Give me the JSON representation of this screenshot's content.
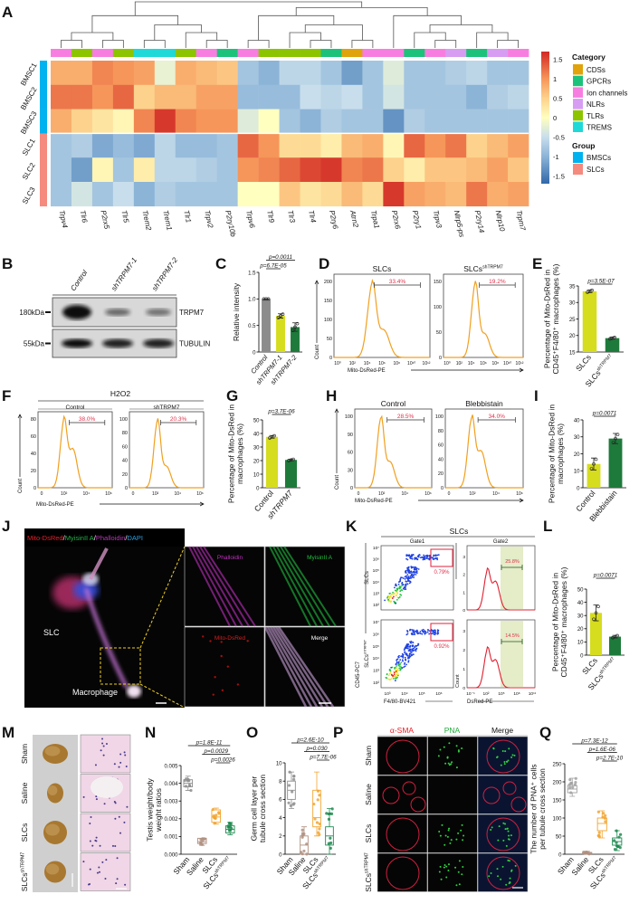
{
  "panel_labels": {
    "A": "A",
    "B": "B",
    "C": "C",
    "D": "D",
    "E": "E",
    "F": "F",
    "G": "G",
    "H": "H",
    "I": "I",
    "J": "J",
    "K": "K",
    "L": "L",
    "M": "M",
    "N": "N",
    "O": "O",
    "P": "P",
    "Q": "Q"
  },
  "chart_data": [
    {
      "panel": "A",
      "type": "heatmap",
      "rows": [
        "BMSC1",
        "BMSC2",
        "BMSC3",
        "SLC1",
        "SLC2",
        "SLC3"
      ],
      "row_groups": [
        "BMSCs",
        "BMSCs",
        "BMSCs",
        "SLCs",
        "SLCs",
        "SLCs"
      ],
      "columns": [
        "Trpv4",
        "Tlr6",
        "P2rx5",
        "Tlr5",
        "Trem2",
        "Trem1",
        "Tlr1",
        "Trpv2",
        "P2ry10b",
        "Trpv6",
        "Tlr9",
        "Tlr3",
        "Tlr4",
        "P2ry6",
        "Atrn2",
        "Trpa1",
        "P2rx6",
        "P2ry1",
        "Trpv3",
        "Nlrp5-ps",
        "P2ry14",
        "Nlrp10",
        "Trpm7"
      ],
      "column_categories": [
        "Ion channels",
        "TLRs",
        "Ion channels",
        "TLRs",
        "TREMS",
        "TREMS",
        "TLRs",
        "Ion channels",
        "GPCRs",
        "Ion channels",
        "TLRs",
        "TLRs",
        "TLRs",
        "GPCRs",
        "CDSs",
        "Ion channels",
        "Ion channels",
        "GPCRs",
        "Ion channels",
        "NLRs",
        "GPCRs",
        "NLRs",
        "Ion channels"
      ],
      "values": [
        [
          0.8,
          0.8,
          1.1,
          1.0,
          0.9,
          -0.2,
          0.8,
          0.7,
          0.6,
          -0.8,
          -1.0,
          -0.6,
          -0.6,
          -0.8,
          -1.2,
          -0.8,
          -0.3,
          -0.8,
          -0.8,
          -0.7,
          -0.6,
          -0.8,
          -0.8
        ],
        [
          1.2,
          1.2,
          1.0,
          1.3,
          0.5,
          0.7,
          0.7,
          0.9,
          0.9,
          -0.9,
          -0.9,
          -0.9,
          -0.5,
          -0.6,
          -0.5,
          -0.8,
          -0.4,
          -0.8,
          -0.8,
          -0.8,
          -1.0,
          -0.7,
          -0.6
        ],
        [
          0.8,
          0.5,
          0.3,
          0.1,
          1.1,
          1.6,
          1.1,
          1.0,
          1.0,
          -0.3,
          0.0,
          -0.8,
          -1.0,
          -0.7,
          -0.8,
          -0.8,
          -1.3,
          -0.7,
          -0.8,
          -0.8,
          -0.8,
          -0.8,
          -0.8
        ],
        [
          -0.8,
          -0.7,
          -1.1,
          -0.9,
          -1.1,
          -0.6,
          -0.9,
          -0.9,
          -0.8,
          1.3,
          1.0,
          0.4,
          0.4,
          0.2,
          0.7,
          0.8,
          0.1,
          1.3,
          1.0,
          1.2,
          0.5,
          0.7,
          0.9
        ],
        [
          -0.8,
          -1.2,
          0.1,
          -0.8,
          0.2,
          -0.6,
          -0.6,
          -0.7,
          -0.8,
          1.0,
          1.1,
          1.3,
          1.5,
          1.6,
          1.1,
          1.2,
          0.5,
          0.2,
          0.6,
          0.6,
          0.7,
          0.9,
          0.6
        ],
        [
          -0.8,
          -0.4,
          -0.8,
          -0.5,
          -1.0,
          -0.7,
          -0.8,
          -0.8,
          -0.8,
          0.0,
          0.0,
          0.6,
          0.3,
          0.4,
          0.7,
          0.4,
          1.6,
          0.9,
          0.8,
          0.7,
          1.2,
          0.8,
          0.9
        ]
      ],
      "color_range": [
        -1.7,
        1.7
      ],
      "scale_ticks": [
        "1.5",
        "1",
        "0.5",
        "0",
        "-0.5",
        "-1",
        "-1.5"
      ],
      "scale_tick_values": [
        1.5,
        1,
        0.5,
        0,
        -0.5,
        -1,
        -1.5
      ],
      "category_title": "Category",
      "categories": [
        {
          "label": "CDSs",
          "color": "#e0a30c"
        },
        {
          "label": "GPCRs",
          "color": "#1cc27a"
        },
        {
          "label": "Ion channels",
          "color": "#f77ee0"
        },
        {
          "label": "NLRs",
          "color": "#d79df2"
        },
        {
          "label": "TLRs",
          "color": "#8dc400"
        },
        {
          "label": "TREMS",
          "color": "#1fd8d8"
        }
      ],
      "group_title": "Group",
      "groups": [
        {
          "label": "BMSCs",
          "color": "#00b2f0"
        },
        {
          "label": "SLCs",
          "color": "#f58a7f"
        }
      ]
    },
    {
      "panel": "C",
      "type": "bar",
      "categories": [
        "Control",
        "shTRPM7-1",
        "shTRPM7-2"
      ],
      "values": [
        1.0,
        0.68,
        0.47
      ],
      "errors": [
        0.0,
        0.04,
        0.08
      ],
      "colors": [
        "#8c8c8c",
        "#d6dc1e",
        "#1e7a3a"
      ],
      "ylim": [
        0,
        1.5
      ],
      "yticks": [
        "0",
        "0.5",
        "1.0",
        "1.5"
      ],
      "ylabel": [
        "Relative intensity"
      ],
      "pvalues": [
        {
          "text": "p=0.0011",
          "from": 0,
          "to": 2
        },
        {
          "text": "p=6.7E-05",
          "from": 0,
          "to": 1
        }
      ]
    },
    {
      "panel": "E",
      "type": "bar",
      "categories": [
        "SLCs",
        "SLCs"
      ],
      "sup": [
        "",
        "shTRPM7"
      ],
      "values": [
        33.4,
        19.2
      ],
      "errors": [
        0.4,
        0.3
      ],
      "colors": [
        "#d6dc1e",
        "#1e7a3a"
      ],
      "ylim": [
        15,
        35
      ],
      "yticks": [
        "15",
        "20",
        "25",
        "30",
        "35"
      ],
      "ylabel": [
        "Percentage of Mito-DsRed in",
        "CD45⁺F4/80⁺ macrophages (%)"
      ],
      "pvalues": [
        {
          "text": "p=3.5E-07",
          "from": 0,
          "to": 1
        }
      ]
    },
    {
      "panel": "G",
      "type": "bar",
      "categories": [
        "Control",
        "shTRPM7"
      ],
      "values": [
        37.5,
        20.5
      ],
      "errors": [
        1.0,
        0.6
      ],
      "colors": [
        "#d6dc1e",
        "#1e7a3a"
      ],
      "ylim": [
        0,
        50
      ],
      "yticks": [
        "0",
        "10",
        "20",
        "30",
        "40",
        "50"
      ],
      "ylabel": [
        "Percentage of Mito-DsRed in",
        "macrophages (%)"
      ],
      "pvalues": [
        {
          "text": "p=3.7E-06",
          "from": 0,
          "to": 1
        }
      ]
    },
    {
      "panel": "I",
      "type": "bar",
      "categories": [
        "Control",
        "Blebbistain"
      ],
      "values": [
        14,
        29
      ],
      "errors": [
        3.5,
        3.0
      ],
      "colors": [
        "#d6dc1e",
        "#1e7a3a"
      ],
      "ylim": [
        0,
        40
      ],
      "yticks": [
        "0",
        "10",
        "20",
        "30",
        "40"
      ],
      "ylabel": [
        "Percentage of Mito-DsRed in",
        "macrophages (%)"
      ],
      "pvalues": [
        {
          "text": "p=0.0071",
          "from": 0,
          "to": 1
        }
      ]
    },
    {
      "panel": "L",
      "type": "bar",
      "categories": [
        "SLCs",
        "SLCs"
      ],
      "sup": [
        "",
        "shTRPM7"
      ],
      "values": [
        32,
        14
      ],
      "errors": [
        6,
        1
      ],
      "colors": [
        "#d6dc1e",
        "#1e7a3a"
      ],
      "ylim": [
        0,
        50
      ],
      "yticks": [
        "0",
        "10",
        "20",
        "30",
        "40",
        "50"
      ],
      "ylabel": [
        "Percentage of Mito-DsRed in",
        "CD45⁺F4/80⁺ macrophages (%)"
      ],
      "pvalues": [
        {
          "text": "p=0.0071",
          "from": 0,
          "to": 1
        }
      ]
    },
    {
      "panel": "N",
      "type": "box",
      "categories": [
        "Sham",
        "Saline",
        "SLCs",
        "SLCs"
      ],
      "sup": [
        "",
        "",
        "",
        "shTRPM7"
      ],
      "colors": [
        "#8f8f8f",
        "#b09080",
        "#f2a530",
        "#1e8a50"
      ],
      "boxes": [
        {
          "min": 0.0036,
          "q1": 0.0038,
          "median": 0.004,
          "q3": 0.0042,
          "max": 0.0044
        },
        {
          "min": 0.0005,
          "q1": 0.0006,
          "median": 0.0007,
          "q3": 0.0009,
          "max": 0.0009
        },
        {
          "min": 0.0017,
          "q1": 0.0018,
          "median": 0.0021,
          "q3": 0.0025,
          "max": 0.0026
        },
        {
          "min": 0.0011,
          "q1": 0.0012,
          "median": 0.0014,
          "q3": 0.0016,
          "max": 0.0018
        }
      ],
      "ylim": [
        0,
        0.005
      ],
      "yticks": [
        "0.000",
        "0.001",
        "0.002",
        "0.003",
        "0.004",
        "0.005"
      ],
      "ylabel": [
        "Testis weight/body",
        "weight ratios"
      ],
      "pvalues": [
        {
          "text": "p=1.8E-11",
          "from": 0,
          "to": 3
        },
        {
          "text": "p=0.0029",
          "from": 1,
          "to": 3
        },
        {
          "text": "p=0.0026",
          "from": 2,
          "to": 3
        }
      ]
    },
    {
      "panel": "O",
      "type": "box",
      "categories": [
        "Sham",
        "Saline",
        "SLCs",
        "SLCs"
      ],
      "sup": [
        "",
        "",
        "",
        "shTRPM7"
      ],
      "colors": [
        "#8f8f8f",
        "#b09080",
        "#f2a530",
        "#1e8a50"
      ],
      "boxes": [
        {
          "min": 5,
          "q1": 6,
          "median": 7,
          "q3": 8,
          "max": 9
        },
        {
          "min": 0,
          "q1": 0,
          "median": 1,
          "q3": 2,
          "max": 3
        },
        {
          "min": 2,
          "q1": 3,
          "median": 4,
          "q3": 7,
          "max": 9
        },
        {
          "min": 0,
          "q1": 1,
          "median": 2,
          "q3": 3,
          "max": 5
        }
      ],
      "ylim": [
        0,
        10
      ],
      "yticks": [
        "0",
        "2",
        "4",
        "6",
        "8",
        "10"
      ],
      "ylabel": [
        "Germ cell layer per",
        "tubule cross section"
      ],
      "pvalues": [
        {
          "text": "p=2.6E-10",
          "from": 0,
          "to": 3
        },
        {
          "text": "p=0.030",
          "from": 1,
          "to": 3
        },
        {
          "text": "p=7.7E-06",
          "from": 2,
          "to": 3
        }
      ]
    },
    {
      "panel": "Q",
      "type": "box",
      "categories": [
        "Sham",
        "Saline",
        "SLCs",
        "SLCs"
      ],
      "sup": [
        "",
        "",
        "",
        "shTRPM7"
      ],
      "colors": [
        "#a0a0a0",
        "#b09080",
        "#f2a530",
        "#1e8a50"
      ],
      "boxes": [
        {
          "min": 160,
          "q1": 170,
          "median": 180,
          "q3": 190,
          "max": 210
        },
        {
          "min": 0,
          "q1": 1,
          "median": 3,
          "q3": 5,
          "max": 8
        },
        {
          "min": 45,
          "q1": 65,
          "median": 85,
          "q3": 100,
          "max": 120
        },
        {
          "min": 10,
          "q1": 25,
          "median": 35,
          "q3": 45,
          "max": 65
        }
      ],
      "ylim": [
        0,
        250
      ],
      "yticks": [
        "0",
        "50",
        "100",
        "150",
        "200",
        "250"
      ],
      "ylabel": [
        "The number of PNA⁺ cells",
        "per tubule cross section"
      ],
      "pvalues": [
        {
          "text": "p=7.3E-12",
          "from": 0,
          "to": 3
        },
        {
          "text": "p=1.6E-06",
          "from": 1,
          "to": 3
        },
        {
          "text": "p=2.7E-10",
          "from": 2,
          "to": 3
        }
      ]
    }
  ],
  "blot": {
    "lanes": [
      "Control",
      "shTRPM7-1",
      "shTRPM7-2"
    ],
    "markers": [
      "180kDa",
      "55kDa"
    ],
    "proteins": [
      "TRPM7",
      "TUBULIN"
    ],
    "band_intensity": [
      [
        1.0,
        0.55,
        0.5
      ],
      [
        1.0,
        0.9,
        0.9
      ]
    ]
  },
  "D": {
    "panels": [
      {
        "title": "SLCs",
        "title_sup": "",
        "pct": "33.4%",
        "yticks": [
          "0",
          "50",
          "100",
          "150",
          "200"
        ]
      },
      {
        "title": "SLCs",
        "title_sup": "shTRPM7",
        "pct": "19.2%",
        "yticks": [
          "0",
          "50",
          "100",
          "150"
        ]
      }
    ],
    "xticks": [
      "10⁰",
      "10²",
      "10⁴",
      "10⁶",
      "10⁸",
      "10¹⁰",
      "10¹²"
    ],
    "xlabel": "Mito-DsRed-PE",
    "ylabel": "Count"
  },
  "F": {
    "title": "H2O2",
    "panels": [
      {
        "title": "Control",
        "title_sup": "",
        "pct": "38.0%",
        "yticks": [
          "0",
          "20",
          "40",
          "60",
          "80"
        ]
      },
      {
        "title": "shTRPM7",
        "title_sup": "",
        "pct": "20.3%",
        "yticks": [
          "0",
          "20",
          "40",
          "60",
          "80",
          "100"
        ]
      }
    ],
    "xticks": [
      "0",
      "10²",
      "10⁴",
      "10⁶"
    ],
    "xlabel": "Mito-DsRed-PE",
    "ylabel": "Count"
  },
  "H": {
    "panels": [
      {
        "title": "Control",
        "title_sup": "",
        "pct": "28.5%",
        "yticks": [
          "0",
          "30",
          "60",
          "90",
          "100"
        ]
      },
      {
        "title": "Blebbistain",
        "title_sup": "",
        "pct": "34.0%",
        "yticks": [
          "0",
          "20",
          "40",
          "60",
          "80",
          "100"
        ]
      }
    ],
    "xticks": [
      "0",
      "10²",
      "10⁴",
      "10⁶"
    ],
    "xlabel": "Mito-DsRed-PE",
    "ylabel": "Count"
  },
  "J": {
    "title_parts": [
      {
        "text": "Mito-DsRed",
        "color": "#e8202a"
      },
      {
        "text": "/",
        "color": "#ffffff"
      },
      {
        "text": "MyisinII A",
        "color": "#22b24a"
      },
      {
        "text": "/",
        "color": "#ffffff"
      },
      {
        "text": "Phalloidin",
        "color": "#b33ab3"
      },
      {
        "text": "/",
        "color": "#ffffff"
      },
      {
        "text": "DAPI",
        "color": "#2aa0e0"
      }
    ],
    "labels": {
      "slc": "SLC",
      "macrophage": "Macrophage"
    },
    "insets": [
      "Phalloidin",
      "MyisinII A",
      "Mito-DsRed",
      "Merge"
    ]
  },
  "K": {
    "title": "SLCs",
    "gate1": "Gate1",
    "gate2": "Gate2",
    "rows": [
      {
        "label": "SLCs",
        "sup": "",
        "scatter_pct": "0.79%",
        "hist_pct": "25.8%"
      },
      {
        "label": "SLCs",
        "sup": "shTRPM7",
        "scatter_pct": "0.92%",
        "hist_pct": "14.5%"
      }
    ],
    "scatter_yticks": [
      "10²",
      "10³",
      "10⁴",
      "10⁵",
      "10⁶",
      "10⁷"
    ],
    "scatter_xticks": [
      "10³",
      "10⁴",
      "10⁵",
      "10⁶"
    ],
    "scatter_xlabel": "F4/80-BV421",
    "scatter_ylabel": "CD45-PC7",
    "hist_yticks": [
      "0",
      "1",
      "2",
      "3"
    ],
    "hist_xticks": [
      "10⁻¹",
      "10²",
      "10⁵",
      "10⁸",
      "10¹¹"
    ],
    "hist_xlabel": "DsRed-PE",
    "hist_ylabel": "Count"
  },
  "M": {
    "rows": [
      {
        "label": "Sham",
        "sup": ""
      },
      {
        "label": "Saline",
        "sup": ""
      },
      {
        "label": "SLCs",
        "sup": ""
      },
      {
        "label": "SLCs",
        "sup": "shTRPM7"
      }
    ]
  },
  "P": {
    "columns": [
      {
        "label": "α-SMA",
        "color": "#e8202a"
      },
      {
        "label": "PNA",
        "color": "#1faa3a"
      },
      {
        "label": "Merge",
        "color": "#111111"
      }
    ],
    "rows": [
      {
        "label": "Sham",
        "sup": ""
      },
      {
        "label": "Saline",
        "sup": ""
      },
      {
        "label": "SLCs",
        "sup": ""
      },
      {
        "label": "SLCs",
        "sup": "shTRPM7"
      }
    ]
  }
}
